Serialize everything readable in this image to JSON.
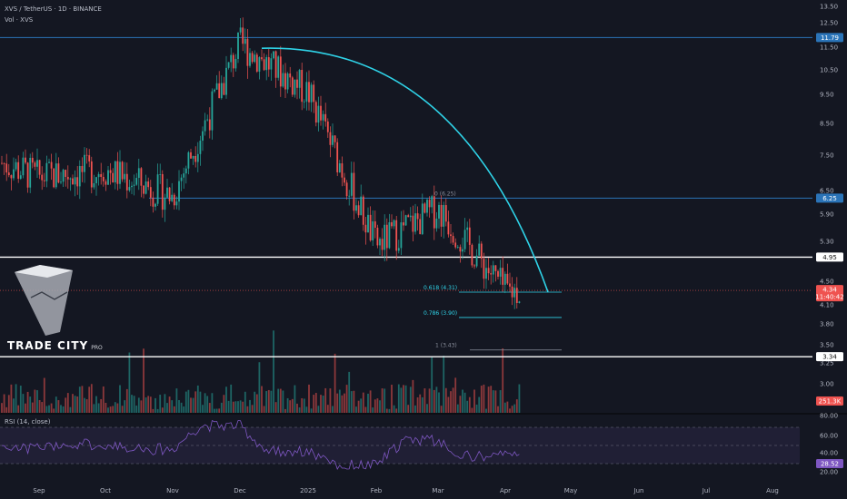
{
  "header": {
    "symbol_line": "XVS / TetherUS · 1D · BINANCE",
    "volume_label": "Vol · XVS"
  },
  "logo": {
    "name": "TRADE CITY",
    "suffix": "PRO"
  },
  "colors": {
    "background": "#141722",
    "up": "#26a69a",
    "down": "#ef5350",
    "curve": "#2fd3e8",
    "blue_level": "#2b74b8",
    "white_level": "#ffffff",
    "rsi_line": "#7e57c2",
    "current_price": "#ef5350",
    "volume_tag": "#ef5350",
    "rsi_tag": "#7e57c2"
  },
  "chart_data": {
    "type": "candlestick",
    "title": "XVS / TetherUS · 1D · BINANCE",
    "price_axis": {
      "ticks": [
        "13.50",
        "12.50",
        "11.50",
        "10.50",
        "9.50",
        "8.50",
        "7.50",
        "6.50",
        "5.90",
        "5.30",
        "4.50",
        "4.10",
        "3.80",
        "3.50",
        "3.25",
        "3.00"
      ],
      "scale": "log"
    },
    "time_axis": {
      "labels": [
        "Sep",
        "Oct",
        "Nov",
        "Dec",
        "2025",
        "Feb",
        "Mar",
        "Apr",
        "May",
        "Jun",
        "Jul",
        "Aug"
      ]
    },
    "horizontal_levels": [
      {
        "price": 11.79,
        "label": "11.79",
        "color": "blue"
      },
      {
        "price": 6.25,
        "label": "6.25",
        "color": "blue"
      },
      {
        "price": 4.95,
        "label": "4.95",
        "color": "white"
      },
      {
        "price": 3.34,
        "label": "3.34",
        "color": "white"
      }
    ],
    "current_price": {
      "value": "4.34",
      "countdown": "11:40:42"
    },
    "fibonacci": [
      {
        "label": "0 (6.25)",
        "price": 6.25
      },
      {
        "label": "0.618 (4.31)",
        "price": 4.31
      },
      {
        "label": "0.786 (3.90)",
        "price": 3.9
      },
      {
        "label": "1 (3.43)",
        "price": 3.43
      }
    ],
    "curve": {
      "from": {
        "date": "Dec",
        "price": 11.3
      },
      "to": {
        "date": "Apr",
        "price": 4.31
      }
    },
    "candles_monthly_path": [
      {
        "month": "Sep",
        "close": 6.8
      },
      {
        "month": "Oct",
        "close": 7.0
      },
      {
        "month": "Nov",
        "close": 6.3
      },
      {
        "month": "Dec",
        "close": 11.5
      },
      {
        "month": "2025",
        "close": 9.5
      },
      {
        "month": "Feb",
        "close": 5.2
      },
      {
        "month": "Mar",
        "close": 6.0
      },
      {
        "month": "Apr",
        "close": 4.34
      }
    ],
    "volume": {
      "label": "Vol · XVS",
      "last_value": "251.3K"
    },
    "rsi": {
      "label": "RSI (14, close)",
      "ticks": [
        "80.00",
        "60.00",
        "40.00",
        "20.00"
      ],
      "bands": [
        70,
        30
      ],
      "last_value": "28.52"
    }
  }
}
